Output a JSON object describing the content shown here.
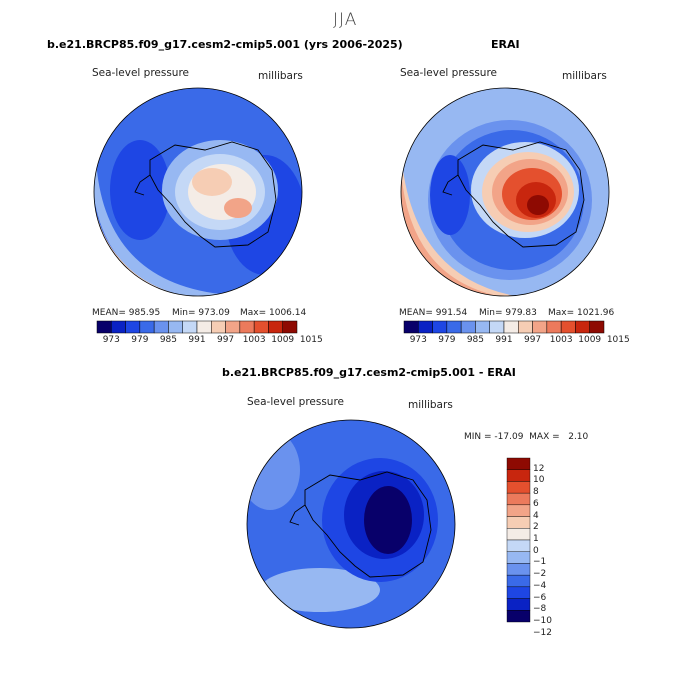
{
  "title": "JJA",
  "panel_left": {
    "title": "b.e21.BRCP85.f09_g17.cesm2-cmip5.001 (yrs 2006-2025)",
    "var_label": "Sea-level pressure",
    "units_label": "millibars",
    "stats": {
      "mean": "MEAN= 985.95",
      "min": "Min= 973.09",
      "max": "Max= 1006.14"
    }
  },
  "panel_right": {
    "title": "ERAI",
    "var_label": "Sea-level pressure",
    "units_label": "millibars",
    "stats": {
      "mean": "MEAN= 991.54",
      "min": "Min= 979.83",
      "max": "Max= 1021.96"
    }
  },
  "panel_diff": {
    "title": "b.e21.BRCP85.f09_g17.cesm2-cmip5.001 - ERAI",
    "var_label": "Sea-level pressure",
    "units_label": "millibars",
    "minmax": "MIN = -17.09  MAX =   2.10"
  },
  "colorbar_h": {
    "colors": [
      "#08006a",
      "#0a22c4",
      "#1e46e4",
      "#3a6ae8",
      "#6a92ee",
      "#97b8f2",
      "#c4d8f6",
      "#f4ece6",
      "#f6cdb4",
      "#f2a488",
      "#ec7a5c",
      "#e4502e",
      "#c8260e",
      "#8e0a02"
    ],
    "labels": [
      "973",
      "979",
      "985",
      "991",
      "997",
      "1003",
      "1009",
      "1015"
    ]
  },
  "colorbar_v": {
    "colors": [
      "#08006a",
      "#0a22c4",
      "#1e46e4",
      "#3a6ae8",
      "#6a92ee",
      "#97b8f2",
      "#c4d8f6",
      "#f4ece6",
      "#f6cdb4",
      "#f2a488",
      "#ec7a5c",
      "#e4502e",
      "#c8260e",
      "#8e0a02"
    ],
    "labels": [
      "12",
      "10",
      "8",
      "6",
      "4",
      "2",
      "1",
      "0",
      "−1",
      "−2",
      "−4",
      "−6",
      "−8",
      "−10",
      "−12"
    ]
  },
  "map_colors": {
    "deep_blue": "#1e46e4",
    "mid_blue": "#3a6ae8",
    "light_blue": "#97b8f2",
    "pale_blue": "#c4d8f6",
    "pale": "#f4ece6",
    "peach": "#f6cdb4",
    "salmon": "#f2a488",
    "red": "#e4502e",
    "dark_red": "#c8260e",
    "navy": "#08006a"
  }
}
